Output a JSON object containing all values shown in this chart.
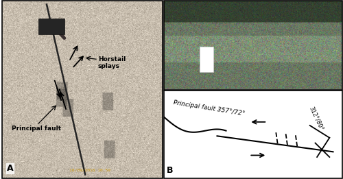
{
  "fig_width": 5.0,
  "fig_height": 2.61,
  "dpi": 100,
  "background": "#ffffff",
  "panel_A_label": "A",
  "panel_B_label": "B",
  "timestamp": "10/09/2016 10:59",
  "timestamp_color": "#c8960a",
  "diagram_B_text": "Principal fault 357°/72°",
  "diagram_B_label2": "312°/80°",
  "border_color": "#000000"
}
